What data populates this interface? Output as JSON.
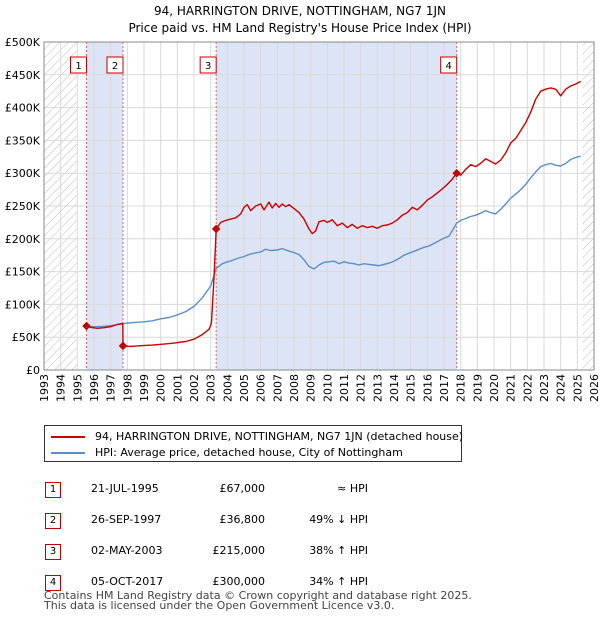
{
  "chart_data": {
    "type": "line",
    "title": "94, HARRINGTON DRIVE, NOTTINGHAM, NG7 1JN",
    "subtitle": "Price paid vs. HM Land Registry's House Price Index (HPI)",
    "xlim": [
      1993,
      2026
    ],
    "ylim": [
      0,
      500000
    ],
    "x_ticks": [
      "1993",
      "1994",
      "1995",
      "1996",
      "1997",
      "1998",
      "1999",
      "2000",
      "2001",
      "2002",
      "2003",
      "2004",
      "2005",
      "2006",
      "2007",
      "2008",
      "2009",
      "2010",
      "2011",
      "2012",
      "2013",
      "2014",
      "2015",
      "2016",
      "2017",
      "2018",
      "2019",
      "2020",
      "2021",
      "2022",
      "2023",
      "2024",
      "2025",
      "2026"
    ],
    "y_ticks": [
      {
        "value": 0,
        "label": "£0"
      },
      {
        "value": 50000,
        "label": "£50K"
      },
      {
        "value": 100000,
        "label": "£100K"
      },
      {
        "value": 150000,
        "label": "£150K"
      },
      {
        "value": 200000,
        "label": "£200K"
      },
      {
        "value": 250000,
        "label": "£250K"
      },
      {
        "value": 300000,
        "label": "£300K"
      },
      {
        "value": 350000,
        "label": "£350K"
      },
      {
        "value": 400000,
        "label": "£400K"
      },
      {
        "value": 450000,
        "label": "£450K"
      },
      {
        "value": 500000,
        "label": "£500K"
      }
    ],
    "shaded_periods": [
      [
        1995.55,
        1997.74
      ],
      [
        2003.33,
        2017.76
      ]
    ],
    "hatched_periods": [
      [
        1993,
        1995.0
      ],
      [
        2025.3,
        2026
      ]
    ],
    "series": [
      {
        "name": "94, HARRINGTON DRIVE, NOTTINGHAM, NG7 1JN (detached house)",
        "color": "#cc0000",
        "x": [
          1995.55,
          1995.8,
          1996.2,
          1996.6,
          1997.0,
          1997.4,
          1997.73,
          1997.74,
          1998.2,
          1998.8,
          1999.5,
          2000.2,
          2000.8,
          2001.5,
          2002.0,
          2002.5,
          2002.9,
          2003.0,
          2003.05,
          2003.2,
          2003.33,
          2003.6,
          2003.9,
          2004.2,
          2004.5,
          2004.8,
          2005.0,
          2005.2,
          2005.4,
          2005.7,
          2006.0,
          2006.2,
          2006.5,
          2006.7,
          2006.9,
          2007.1,
          2007.3,
          2007.5,
          2007.7,
          2008.0,
          2008.3,
          2008.6,
          2008.9,
          2009.1,
          2009.3,
          2009.5,
          2009.8,
          2010.0,
          2010.3,
          2010.6,
          2010.9,
          2011.2,
          2011.5,
          2011.8,
          2012.1,
          2012.4,
          2012.7,
          2013.0,
          2013.3,
          2013.6,
          2013.9,
          2014.2,
          2014.5,
          2014.8,
          2015.1,
          2015.4,
          2015.7,
          2016.0,
          2016.3,
          2016.6,
          2016.9,
          2017.2,
          2017.5,
          2017.76,
          2018.0,
          2018.3,
          2018.6,
          2018.9,
          2019.2,
          2019.5,
          2019.8,
          2020.1,
          2020.4,
          2020.7,
          2021.0,
          2021.3,
          2021.6,
          2021.9,
          2022.2,
          2022.5,
          2022.8,
          2023.1,
          2023.4,
          2023.7,
          2024.0,
          2024.3,
          2024.6,
          2024.9,
          2025.2
        ],
        "values": [
          67000,
          65000,
          63500,
          64500,
          66000,
          69500,
          71000,
          36800,
          36000,
          37000,
          38000,
          39500,
          41000,
          43500,
          47000,
          54000,
          62000,
          68000,
          73000,
          140000,
          215000,
          225000,
          228000,
          230000,
          232000,
          238000,
          248000,
          252000,
          243000,
          250000,
          253000,
          244000,
          256000,
          247000,
          254000,
          248000,
          253000,
          249000,
          252000,
          246000,
          240000,
          230000,
          215000,
          208000,
          212000,
          226000,
          228000,
          225000,
          229000,
          220000,
          224000,
          217000,
          222000,
          216000,
          220000,
          217000,
          219000,
          216000,
          220000,
          221000,
          224000,
          229000,
          236000,
          240000,
          248000,
          244000,
          251000,
          259000,
          264000,
          270000,
          276000,
          283000,
          291000,
          300000,
          297000,
          306000,
          313000,
          310000,
          315000,
          322000,
          318000,
          314000,
          320000,
          331000,
          346000,
          353000,
          365000,
          377000,
          393000,
          413000,
          425000,
          428000,
          430000,
          428000,
          418000,
          428000,
          433000,
          436000,
          440000
        ]
      },
      {
        "name": "HPI: Average price, detached house, City of Nottingham",
        "color": "#5b8fc9",
        "x": [
          1995.55,
          1996.0,
          1996.5,
          1997.0,
          1997.5,
          1998.0,
          1998.5,
          1999.0,
          1999.5,
          2000.0,
          2000.5,
          2001.0,
          2001.5,
          2002.0,
          2002.5,
          2003.0,
          2003.33,
          2003.7,
          2004.0,
          2004.3,
          2004.6,
          2005.0,
          2005.3,
          2005.6,
          2006.0,
          2006.3,
          2006.6,
          2007.0,
          2007.3,
          2007.6,
          2008.0,
          2008.3,
          2008.6,
          2008.9,
          2009.2,
          2009.5,
          2009.8,
          2010.1,
          2010.4,
          2010.7,
          2011.0,
          2011.3,
          2011.6,
          2011.9,
          2012.2,
          2012.5,
          2012.8,
          2013.1,
          2013.4,
          2013.7,
          2014.0,
          2014.3,
          2014.6,
          2014.9,
          2015.2,
          2015.5,
          2015.8,
          2016.1,
          2016.4,
          2016.7,
          2017.0,
          2017.3,
          2017.76,
          2018.0,
          2018.3,
          2018.6,
          2018.9,
          2019.2,
          2019.5,
          2019.8,
          2020.1,
          2020.4,
          2020.7,
          2021.0,
          2021.3,
          2021.6,
          2021.9,
          2022.2,
          2022.5,
          2022.8,
          2023.1,
          2023.4,
          2023.7,
          2024.0,
          2024.3,
          2024.6,
          2024.9,
          2025.2
        ],
        "values": [
          67000,
          66000,
          66500,
          67500,
          69500,
          71500,
          72500,
          73500,
          75000,
          78000,
          80000,
          84000,
          89000,
          97000,
          110000,
          128000,
          155000,
          162000,
          165000,
          167000,
          170000,
          173000,
          176000,
          178000,
          180000,
          184000,
          182000,
          183000,
          185000,
          182000,
          179000,
          176000,
          168000,
          158000,
          154000,
          160000,
          164000,
          165000,
          166000,
          162000,
          165000,
          163000,
          162000,
          160000,
          162000,
          161000,
          160000,
          159000,
          161000,
          163000,
          166000,
          170000,
          175000,
          178000,
          181000,
          184000,
          187000,
          189000,
          193000,
          197000,
          201000,
          204000,
          224000,
          228000,
          231000,
          234000,
          236000,
          239000,
          243000,
          240000,
          238000,
          245000,
          253000,
          262000,
          268000,
          275000,
          283000,
          293000,
          302000,
          310000,
          313000,
          315000,
          312000,
          311000,
          315000,
          321000,
          324000,
          326000
        ]
      }
    ],
    "sale_markers": [
      {
        "label": "1",
        "x": 1995.55,
        "value": 67000
      },
      {
        "label": "2",
        "x": 1997.74,
        "value": 36800
      },
      {
        "label": "3",
        "x": 2003.33,
        "value": 215000
      },
      {
        "label": "4",
        "x": 2017.76,
        "value": 300000
      }
    ],
    "legend": [
      {
        "label": "94, HARRINGTON DRIVE, NOTTINGHAM, NG7 1JN (detached house)",
        "color": "#cc0000"
      },
      {
        "label": "HPI: Average price, detached house, City of Nottingham",
        "color": "#5b8fc9"
      }
    ]
  },
  "sales": [
    {
      "num": "1",
      "date": "21-JUL-1995",
      "price": "£67,000",
      "hpi": "≈ HPI"
    },
    {
      "num": "2",
      "date": "26-SEP-1997",
      "price": "£36,800",
      "hpi": "49% ↓ HPI"
    },
    {
      "num": "3",
      "date": "02-MAY-2003",
      "price": "£215,000",
      "hpi": "38% ↑ HPI"
    },
    {
      "num": "4",
      "date": "05-OCT-2017",
      "price": "£300,000",
      "hpi": "34% ↑ HPI"
    }
  ],
  "footer": {
    "line1": "Contains HM Land Registry data © Crown copyright and database right 2025.",
    "line2": "This data is licensed under the Open Government Licence v3.0."
  }
}
